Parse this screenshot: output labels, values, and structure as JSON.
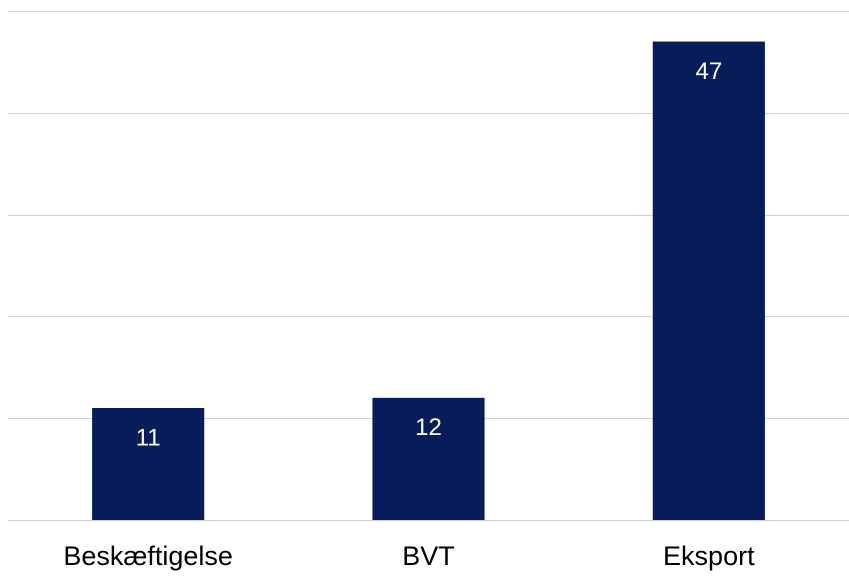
{
  "chart_data": {
    "type": "bar",
    "categories": [
      "Beskæftigelse",
      "BVT",
      "Eksport"
    ],
    "values": [
      11,
      12,
      47
    ],
    "color": "#061d5a",
    "ylim": [
      0,
      50
    ],
    "yticks": [
      0,
      10,
      20,
      30,
      40,
      50
    ],
    "grid": true
  }
}
